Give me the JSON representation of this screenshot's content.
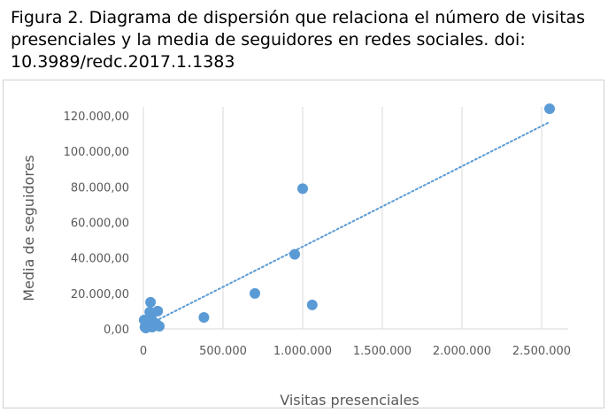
{
  "caption": "Figura 2. Diagrama de dispersión que relaciona el número de visitas presenciales y la media de seguidores en redes sociales. doi: 10.3989/redc.2017.1.1383",
  "chart_data": {
    "type": "scatter",
    "xlabel": "Visitas presenciales",
    "ylabel": "Media de seguidores",
    "xlim": [
      0,
      2500000
    ],
    "ylim": [
      0,
      120000
    ],
    "x_ticks": [
      0,
      500000,
      1000000,
      1500000,
      2000000,
      2500000
    ],
    "x_tick_labels": [
      "0",
      "500.000",
      "1.000.000",
      "1.500.000",
      "2.000.000",
      "2.500.000"
    ],
    "y_ticks": [
      0,
      20000,
      40000,
      60000,
      80000,
      100000,
      120000
    ],
    "y_tick_labels": [
      "0,00",
      "20.000,00",
      "40.000,00",
      "60.000,00",
      "80.000,00",
      "100.000,00",
      "120.000,00"
    ],
    "grid": "vertical",
    "marker_color": "#5b9bd5",
    "trendline": {
      "type": "linear",
      "style": "dotted",
      "color": "#5b9bd5",
      "x": [
        0,
        2550000
      ],
      "y": [
        1000,
        116500
      ]
    },
    "points": [
      {
        "x": 5000,
        "y": 5000
      },
      {
        "x": 10000,
        "y": 1000
      },
      {
        "x": 15000,
        "y": 500
      },
      {
        "x": 20000,
        "y": 3000
      },
      {
        "x": 25000,
        "y": 2000
      },
      {
        "x": 30000,
        "y": 4000
      },
      {
        "x": 35000,
        "y": 2500
      },
      {
        "x": 40000,
        "y": 9500
      },
      {
        "x": 45000,
        "y": 15000
      },
      {
        "x": 50000,
        "y": 6000
      },
      {
        "x": 55000,
        "y": 1000
      },
      {
        "x": 60000,
        "y": 3500
      },
      {
        "x": 70000,
        "y": 2000
      },
      {
        "x": 80000,
        "y": 3000
      },
      {
        "x": 90000,
        "y": 10000
      },
      {
        "x": 100000,
        "y": 1500
      },
      {
        "x": 380000,
        "y": 6500
      },
      {
        "x": 700000,
        "y": 20000
      },
      {
        "x": 950000,
        "y": 42000
      },
      {
        "x": 1000000,
        "y": 79000
      },
      {
        "x": 1060000,
        "y": 13500
      },
      {
        "x": 2550000,
        "y": 124000
      }
    ]
  }
}
